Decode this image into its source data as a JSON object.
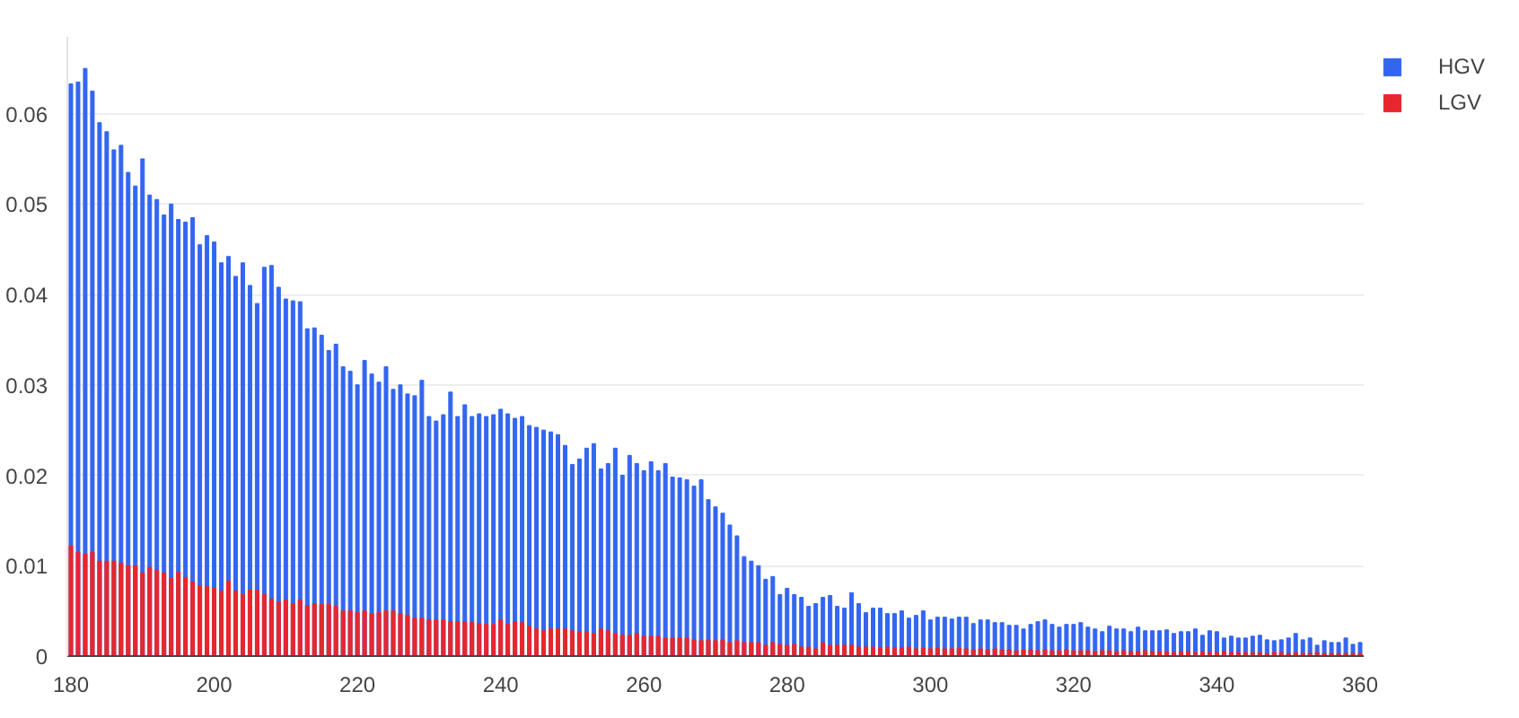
{
  "chart_data": {
    "type": "bar",
    "x": [
      180,
      181,
      182,
      183,
      184,
      185,
      186,
      187,
      188,
      189,
      190,
      191,
      192,
      193,
      194,
      195,
      196,
      197,
      198,
      199,
      200,
      201,
      202,
      203,
      204,
      205,
      206,
      207,
      208,
      209,
      210,
      211,
      212,
      213,
      214,
      215,
      216,
      217,
      218,
      219,
      220,
      221,
      222,
      223,
      224,
      225,
      226,
      227,
      228,
      229,
      230,
      231,
      232,
      233,
      234,
      235,
      236,
      237,
      238,
      239,
      240,
      241,
      242,
      243,
      244,
      245,
      246,
      247,
      248,
      249,
      250,
      251,
      252,
      253,
      254,
      255,
      256,
      257,
      258,
      259,
      260,
      261,
      262,
      263,
      264,
      265,
      266,
      267,
      268,
      269,
      270,
      271,
      272,
      273,
      274,
      275,
      276,
      277,
      278,
      279,
      280,
      281,
      282,
      283,
      284,
      285,
      286,
      287,
      288,
      289,
      290,
      291,
      292,
      293,
      294,
      295,
      296,
      297,
      298,
      299,
      300,
      301,
      302,
      303,
      304,
      305,
      306,
      307,
      308,
      309,
      310,
      311,
      312,
      313,
      314,
      315,
      316,
      317,
      318,
      319,
      320,
      321,
      322,
      323,
      324,
      325,
      326,
      327,
      328,
      329,
      330,
      331,
      332,
      333,
      334,
      335,
      336,
      337,
      338,
      339,
      340,
      341,
      342,
      343,
      344,
      345,
      346,
      347,
      348,
      349,
      350,
      351,
      352,
      353,
      354,
      355,
      356,
      357,
      358,
      359,
      360
    ],
    "series": [
      {
        "name": "HGV",
        "color": "#3366f0",
        "values": [
          0.0633,
          0.0635,
          0.065,
          0.0625,
          0.059,
          0.058,
          0.056,
          0.0565,
          0.0535,
          0.052,
          0.055,
          0.051,
          0.0505,
          0.0488,
          0.05,
          0.0483,
          0.048,
          0.0485,
          0.0455,
          0.0465,
          0.0458,
          0.0435,
          0.0442,
          0.042,
          0.0435,
          0.041,
          0.039,
          0.043,
          0.0432,
          0.0408,
          0.0395,
          0.0393,
          0.0392,
          0.0362,
          0.0363,
          0.0355,
          0.0338,
          0.0345,
          0.032,
          0.0315,
          0.03,
          0.0327,
          0.0312,
          0.0303,
          0.032,
          0.0295,
          0.03,
          0.029,
          0.0288,
          0.0305,
          0.0265,
          0.026,
          0.0267,
          0.0292,
          0.0265,
          0.0278,
          0.0265,
          0.0268,
          0.0265,
          0.0267,
          0.0273,
          0.0268,
          0.0263,
          0.0265,
          0.0255,
          0.0253,
          0.025,
          0.0248,
          0.0245,
          0.0233,
          0.0212,
          0.0218,
          0.023,
          0.0235,
          0.0207,
          0.0213,
          0.023,
          0.02,
          0.0222,
          0.0213,
          0.0205,
          0.0215,
          0.0205,
          0.0213,
          0.0198,
          0.0197,
          0.0195,
          0.0188,
          0.0195,
          0.0173,
          0.0165,
          0.0158,
          0.0145,
          0.0133,
          0.011,
          0.0105,
          0.01,
          0.0085,
          0.0088,
          0.0068,
          0.0075,
          0.0068,
          0.0065,
          0.0055,
          0.0058,
          0.0065,
          0.0067,
          0.0055,
          0.0053,
          0.007,
          0.0058,
          0.0048,
          0.0053,
          0.0053,
          0.0047,
          0.0047,
          0.005,
          0.0042,
          0.0045,
          0.005,
          0.004,
          0.0043,
          0.0043,
          0.0041,
          0.0043,
          0.0043,
          0.0036,
          0.004,
          0.004,
          0.0037,
          0.0037,
          0.0034,
          0.0034,
          0.003,
          0.0035,
          0.0038,
          0.004,
          0.0035,
          0.0032,
          0.0035,
          0.0035,
          0.0037,
          0.0032,
          0.003,
          0.0027,
          0.0033,
          0.003,
          0.003,
          0.0027,
          0.0032,
          0.0028,
          0.0028,
          0.0028,
          0.0029,
          0.0025,
          0.0027,
          0.0027,
          0.003,
          0.0023,
          0.0028,
          0.0027,
          0.002,
          0.0022,
          0.002,
          0.002,
          0.0022,
          0.0023,
          0.0018,
          0.0017,
          0.0018,
          0.002,
          0.0025,
          0.0018,
          0.002,
          0.0012,
          0.0017,
          0.0015,
          0.0015,
          0.002,
          0.0013,
          0.0015
        ]
      },
      {
        "name": "LGV",
        "color": "#e8262e",
        "values": [
          0.0122,
          0.0115,
          0.0113,
          0.0115,
          0.0105,
          0.0105,
          0.0105,
          0.0103,
          0.01,
          0.01,
          0.0092,
          0.0098,
          0.0095,
          0.0092,
          0.0086,
          0.0093,
          0.0087,
          0.0082,
          0.0078,
          0.0077,
          0.0075,
          0.0072,
          0.0083,
          0.0072,
          0.0068,
          0.0073,
          0.0073,
          0.0068,
          0.0063,
          0.006,
          0.0062,
          0.0058,
          0.0062,
          0.0056,
          0.0058,
          0.0057,
          0.0057,
          0.0055,
          0.005,
          0.005,
          0.0048,
          0.005,
          0.0047,
          0.0048,
          0.005,
          0.005,
          0.0047,
          0.0045,
          0.0042,
          0.0042,
          0.004,
          0.004,
          0.004,
          0.0038,
          0.0038,
          0.0038,
          0.0037,
          0.0036,
          0.0035,
          0.0035,
          0.004,
          0.0035,
          0.0038,
          0.0037,
          0.0033,
          0.003,
          0.0028,
          0.003,
          0.003,
          0.003,
          0.0028,
          0.0027,
          0.0027,
          0.0025,
          0.003,
          0.0028,
          0.0025,
          0.0023,
          0.0023,
          0.0025,
          0.0022,
          0.0022,
          0.0022,
          0.002,
          0.002,
          0.002,
          0.002,
          0.0018,
          0.0017,
          0.0018,
          0.0017,
          0.0018,
          0.0015,
          0.0017,
          0.0015,
          0.0015,
          0.0015,
          0.0012,
          0.0015,
          0.0013,
          0.0012,
          0.0013,
          0.001,
          0.001,
          0.0008,
          0.0015,
          0.0012,
          0.0012,
          0.0012,
          0.0012,
          0.001,
          0.001,
          0.001,
          0.0009,
          0.001,
          0.0009,
          0.0009,
          0.001,
          0.0008,
          0.0009,
          0.0008,
          0.0009,
          0.0008,
          0.0008,
          0.0009,
          0.0008,
          0.0007,
          0.0008,
          0.0007,
          0.0008,
          0.0007,
          0.0007,
          0.0006,
          0.0007,
          0.0007,
          0.0006,
          0.0007,
          0.0006,
          0.0006,
          0.0007,
          0.0006,
          0.0006,
          0.0006,
          0.0005,
          0.0006,
          0.0006,
          0.0005,
          0.0006,
          0.0005,
          0.0005,
          0.0006,
          0.0005,
          0.0005,
          0.0005,
          0.0004,
          0.0005,
          0.0005,
          0.0004,
          0.0005,
          0.0004,
          0.0004,
          0.0005,
          0.0004,
          0.0004,
          0.0004,
          0.0004,
          0.0004,
          0.0003,
          0.0004,
          0.0004,
          0.0003,
          0.0004,
          0.0003,
          0.0003,
          0.0004,
          0.0003,
          0.0003,
          0.0003,
          0.0003,
          0.0003,
          0.0003
        ]
      }
    ],
    "xlim": [
      179.5,
      360.5
    ],
    "xticks": [
      180,
      200,
      220,
      240,
      260,
      280,
      300,
      320,
      340,
      360
    ],
    "ylim": [
      0,
      0.0685
    ],
    "yticks": [
      0,
      0.01,
      0.02,
      0.03,
      0.04,
      0.05,
      0.06
    ],
    "grid": "y",
    "legend": "top right"
  }
}
